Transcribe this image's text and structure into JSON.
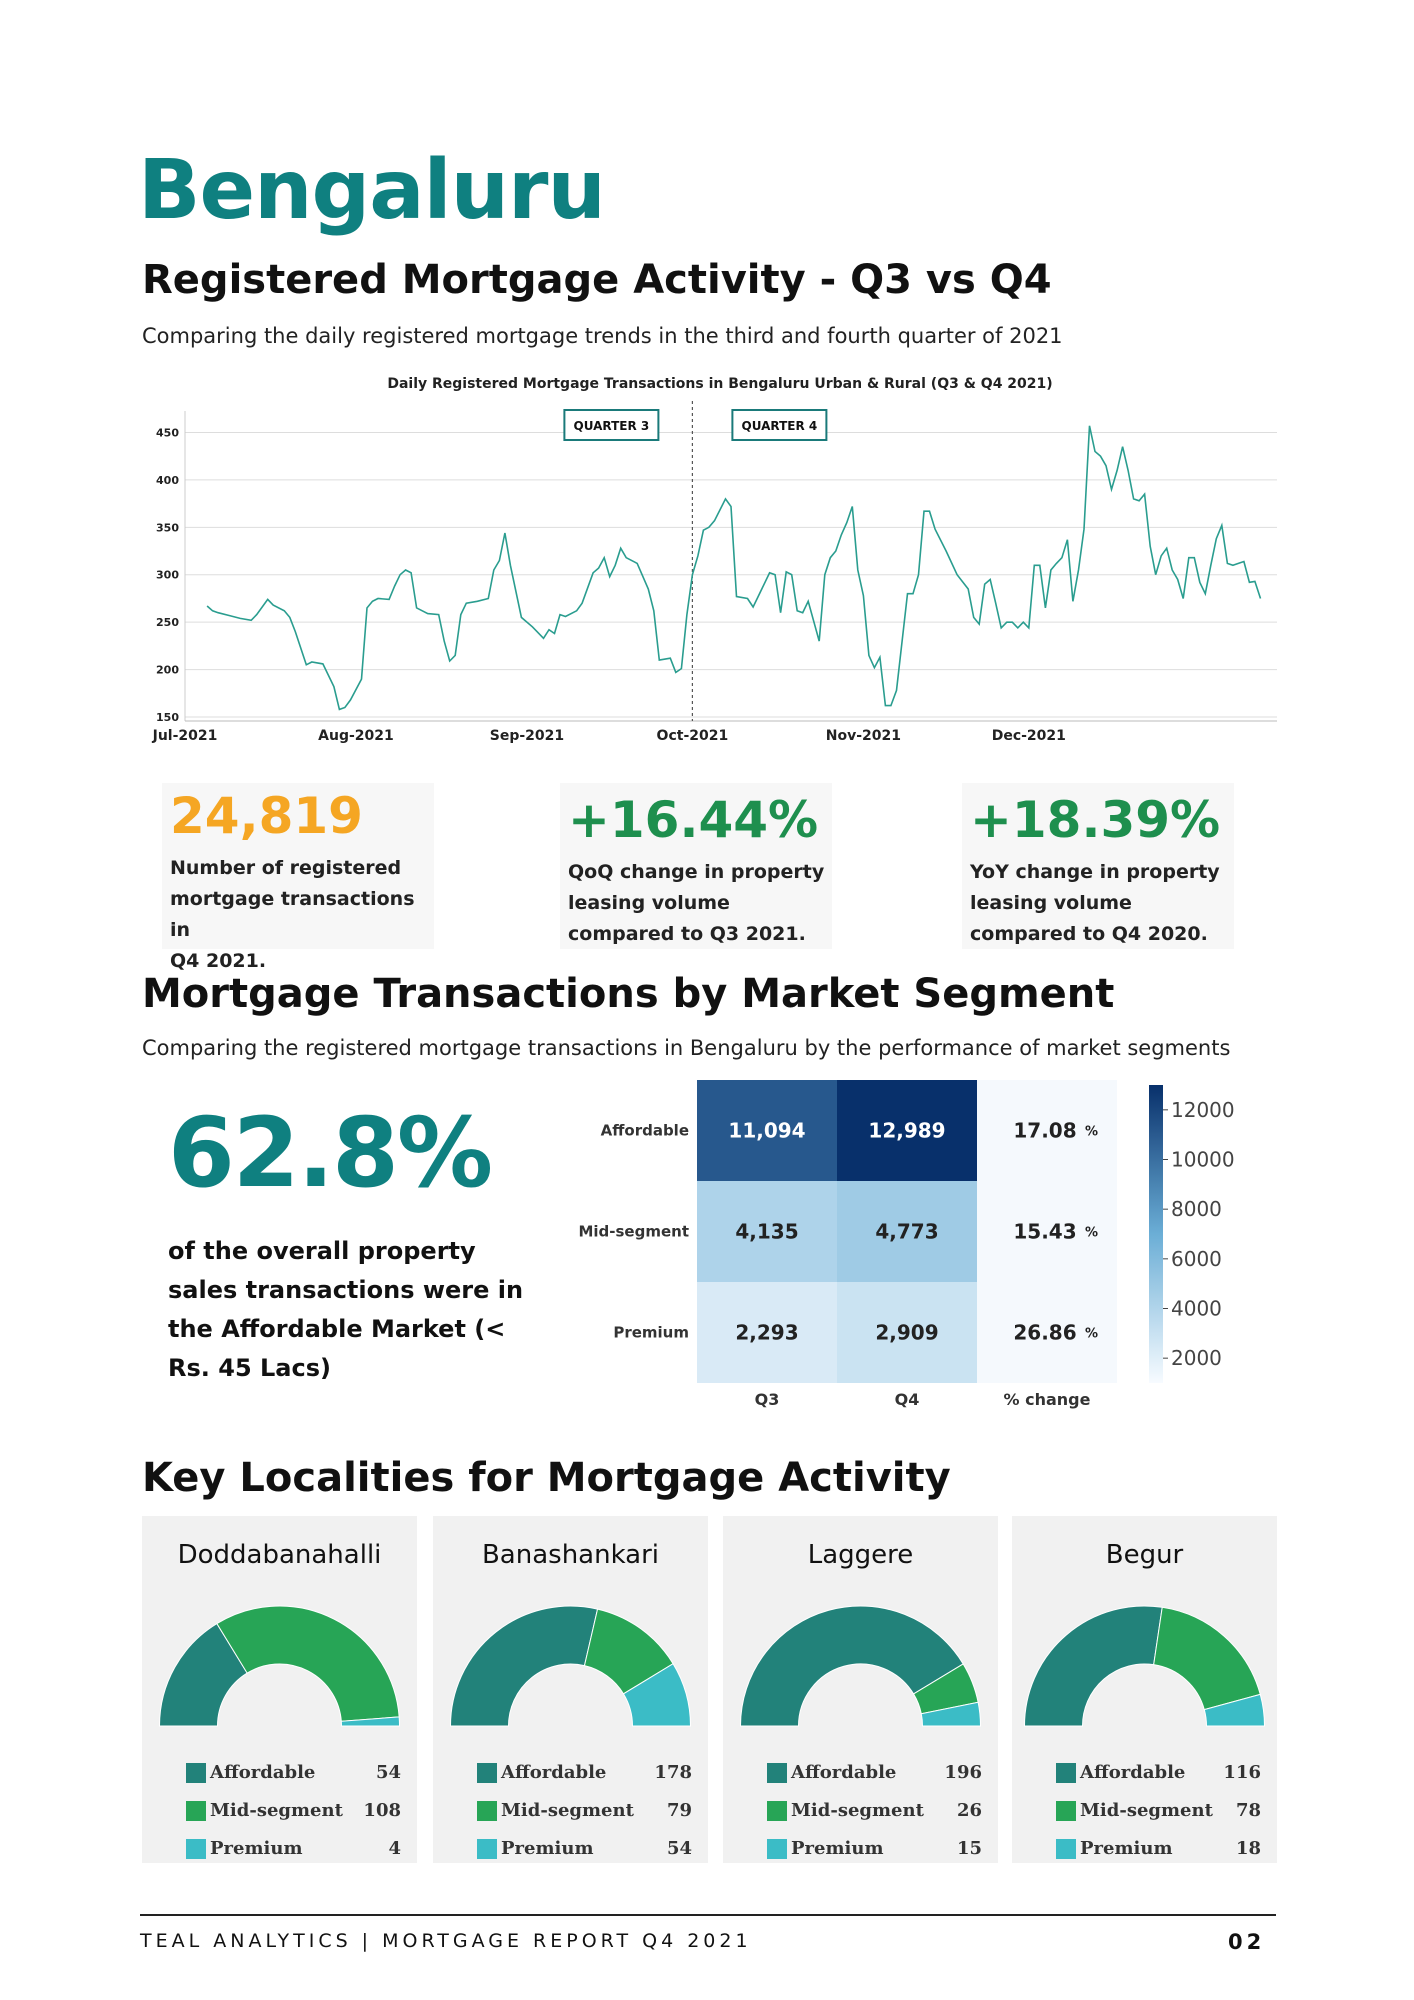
{
  "header": {
    "city": "Bengaluru",
    "section1_title": "Registered Mortgage Activity - Q3 vs Q4",
    "section1_subtitle": "Comparing the daily registered mortgage trends in the third and fourth quarter of 2021"
  },
  "colors": {
    "teal": "#0f8080",
    "orange": "#f5a623",
    "green": "#1e8f4e",
    "affordable": "#22827a",
    "mid_segment": "#27a556",
    "premium": "#3bbcc6"
  },
  "stats": [
    {
      "value": "24,819",
      "desc": [
        "Number of registered",
        "mortgage transactions in",
        "Q4 2021."
      ],
      "color": "#f5a623"
    },
    {
      "value": "+16.44%",
      "desc": [
        "QoQ change in property",
        "leasing volume",
        "compared to Q3 2021."
      ],
      "color": "#1e8f4e"
    },
    {
      "value": "+18.39%",
      "desc": [
        "YoY change in property",
        "leasing volume",
        "compared to Q4 2020."
      ],
      "color": "#1e8f4e"
    }
  ],
  "segment_section": {
    "title": "Mortgage Transactions by Market Segment",
    "subtitle": "Comparing the registered mortgage transactions in Bengaluru by the performance of market segments",
    "highlight_value": "62.8%",
    "highlight_desc": "of the overall property sales transactions were in the Affordable Market (< Rs. 45 Lacs)"
  },
  "localities_section": {
    "title": "Key Localities for Mortgage Activity",
    "legend_labels": [
      "Affordable",
      "Mid-segment",
      "Premium"
    ]
  },
  "footer": {
    "text": "TEAL ANALYTICS | MORTGAGE REPORT Q4 2021",
    "page": "02"
  },
  "chart_data": [
    {
      "type": "line",
      "title": "Daily Registered Mortgage Transactions in Bengaluru Urban & Rural (Q3 & Q4 2021)",
      "x_ticks": [
        "Jul-2021",
        "Aug-2021",
        "Sep-2021",
        "Oct-2021",
        "Nov-2021",
        "Dec-2021"
      ],
      "y_ticks": [
        150,
        200,
        250,
        300,
        350,
        400,
        450
      ],
      "ylim": [
        150,
        460
      ],
      "grid": "horizontal",
      "annotations": [
        "QUARTER 3",
        "QUARTER 4"
      ],
      "divider_date": "2021-10-01",
      "series": [
        {
          "color": "#2a9d8f",
          "points": [
            [
              "2021-07-05",
              267
            ],
            [
              "2021-07-06",
              262
            ],
            [
              "2021-07-07",
              260
            ],
            [
              "2021-07-09",
              257
            ],
            [
              "2021-07-11",
              254
            ],
            [
              "2021-07-13",
              252
            ],
            [
              "2021-07-14",
              258
            ],
            [
              "2021-07-16",
              274
            ],
            [
              "2021-07-17",
              268
            ],
            [
              "2021-07-19",
              262
            ],
            [
              "2021-07-20",
              255
            ],
            [
              "2021-07-21",
              240
            ],
            [
              "2021-07-23",
              205
            ],
            [
              "2021-07-24",
              208
            ],
            [
              "2021-07-26",
              206
            ],
            [
              "2021-07-28",
              182
            ],
            [
              "2021-07-29",
              158
            ],
            [
              "2021-07-30",
              160
            ],
            [
              "2021-07-31",
              168
            ],
            [
              "2021-08-02",
              190
            ],
            [
              "2021-08-03",
              265
            ],
            [
              "2021-08-04",
              272
            ],
            [
              "2021-08-05",
              275
            ],
            [
              "2021-08-07",
              274
            ],
            [
              "2021-08-08",
              288
            ],
            [
              "2021-08-09",
              300
            ],
            [
              "2021-08-10",
              305
            ],
            [
              "2021-08-11",
              302
            ],
            [
              "2021-08-12",
              265
            ],
            [
              "2021-08-14",
              259
            ],
            [
              "2021-08-16",
              258
            ],
            [
              "2021-08-17",
              230
            ],
            [
              "2021-08-18",
              209
            ],
            [
              "2021-08-19",
              215
            ],
            [
              "2021-08-20",
              258
            ],
            [
              "2021-08-21",
              270
            ],
            [
              "2021-08-23",
              272
            ],
            [
              "2021-08-25",
              275
            ],
            [
              "2021-08-26",
              305
            ],
            [
              "2021-08-27",
              315
            ],
            [
              "2021-08-28",
              344
            ],
            [
              "2021-08-29",
              310
            ],
            [
              "2021-08-31",
              255
            ],
            [
              "2021-09-02",
              245
            ],
            [
              "2021-09-04",
              233
            ],
            [
              "2021-09-05",
              242
            ],
            [
              "2021-09-06",
              238
            ],
            [
              "2021-09-07",
              258
            ],
            [
              "2021-09-08",
              256
            ],
            [
              "2021-09-10",
              262
            ],
            [
              "2021-09-11",
              270
            ],
            [
              "2021-09-13",
              302
            ],
            [
              "2021-09-14",
              307
            ],
            [
              "2021-09-15",
              318
            ],
            [
              "2021-09-16",
              298
            ],
            [
              "2021-09-17",
              310
            ],
            [
              "2021-09-18",
              328
            ],
            [
              "2021-09-19",
              318
            ],
            [
              "2021-09-21",
              312
            ],
            [
              "2021-09-23",
              285
            ],
            [
              "2021-09-24",
              262
            ],
            [
              "2021-09-25",
              210
            ],
            [
              "2021-09-27",
              212
            ],
            [
              "2021-09-28",
              197
            ],
            [
              "2021-09-29",
              201
            ],
            [
              "2021-09-30",
              258
            ],
            [
              "2021-10-01",
              300
            ],
            [
              "2021-10-02",
              320
            ],
            [
              "2021-10-03",
              347
            ],
            [
              "2021-10-04",
              350
            ],
            [
              "2021-10-05",
              357
            ],
            [
              "2021-10-07",
              380
            ],
            [
              "2021-10-08",
              372
            ],
            [
              "2021-10-09",
              277
            ],
            [
              "2021-10-11",
              275
            ],
            [
              "2021-10-12",
              266
            ],
            [
              "2021-10-13",
              278
            ],
            [
              "2021-10-15",
              302
            ],
            [
              "2021-10-16",
              300
            ],
            [
              "2021-10-17",
              260
            ],
            [
              "2021-10-18",
              303
            ],
            [
              "2021-10-19",
              300
            ],
            [
              "2021-10-20",
              262
            ],
            [
              "2021-10-21",
              260
            ],
            [
              "2021-10-22",
              272
            ],
            [
              "2021-10-24",
              230
            ],
            [
              "2021-10-25",
              300
            ],
            [
              "2021-10-26",
              318
            ],
            [
              "2021-10-27",
              325
            ],
            [
              "2021-10-28",
              342
            ],
            [
              "2021-10-29",
              355
            ],
            [
              "2021-10-30",
              372
            ],
            [
              "2021-10-31",
              305
            ],
            [
              "2021-11-01",
              278
            ],
            [
              "2021-11-02",
              215
            ],
            [
              "2021-11-03",
              202
            ],
            [
              "2021-11-04",
              213
            ],
            [
              "2021-11-05",
              162
            ],
            [
              "2021-11-06",
              162
            ],
            [
              "2021-11-07",
              178
            ],
            [
              "2021-11-09",
              280
            ],
            [
              "2021-11-10",
              280
            ],
            [
              "2021-11-11",
              300
            ],
            [
              "2021-11-12",
              367
            ],
            [
              "2021-11-13",
              367
            ],
            [
              "2021-11-14",
              348
            ],
            [
              "2021-11-16",
              325
            ],
            [
              "2021-11-18",
              300
            ],
            [
              "2021-11-20",
              285
            ],
            [
              "2021-11-21",
              255
            ],
            [
              "2021-11-22",
              248
            ],
            [
              "2021-11-23",
              290
            ],
            [
              "2021-11-24",
              295
            ],
            [
              "2021-11-25",
              270
            ],
            [
              "2021-11-26",
              244
            ],
            [
              "2021-11-27",
              250
            ],
            [
              "2021-11-28",
              250
            ],
            [
              "2021-11-29",
              244
            ],
            [
              "2021-11-30",
              250
            ],
            [
              "2021-12-01",
              244
            ],
            [
              "2021-12-02",
              310
            ],
            [
              "2021-12-03",
              310
            ],
            [
              "2021-12-04",
              265
            ],
            [
              "2021-12-05",
              305
            ],
            [
              "2021-12-06",
              312
            ],
            [
              "2021-12-07",
              318
            ],
            [
              "2021-12-08",
              337
            ],
            [
              "2021-12-09",
              272
            ],
            [
              "2021-12-10",
              305
            ],
            [
              "2021-12-11",
              348
            ],
            [
              "2021-12-12",
              457
            ],
            [
              "2021-12-13",
              430
            ],
            [
              "2021-12-14",
              425
            ],
            [
              "2021-12-15",
              415
            ],
            [
              "2021-12-16",
              390
            ],
            [
              "2021-12-17",
              410
            ],
            [
              "2021-12-18",
              435
            ],
            [
              "2021-12-19",
              410
            ],
            [
              "2021-12-20",
              380
            ],
            [
              "2021-12-21",
              378
            ],
            [
              "2021-12-22",
              385
            ],
            [
              "2021-12-23",
              330
            ],
            [
              "2021-12-24",
              300
            ],
            [
              "2021-12-25",
              320
            ],
            [
              "2021-12-26",
              328
            ],
            [
              "2021-12-27",
              305
            ],
            [
              "2021-12-28",
              295
            ],
            [
              "2021-12-29",
              275
            ],
            [
              "2021-12-30",
              318
            ],
            [
              "2021-12-31",
              318
            ],
            [
              "2022-01-01",
              292
            ],
            [
              "2022-01-02",
              280
            ],
            [
              "2022-01-03",
              310
            ],
            [
              "2022-01-04",
              338
            ],
            [
              "2022-01-05",
              352
            ],
            [
              "2022-01-06",
              312
            ],
            [
              "2022-01-07",
              310
            ],
            [
              "2022-01-08",
              312
            ],
            [
              "2022-01-09",
              314
            ],
            [
              "2022-01-10",
              292
            ],
            [
              "2022-01-11",
              293
            ],
            [
              "2022-01-12",
              275
            ]
          ]
        }
      ]
    },
    {
      "type": "heatmap",
      "rows": [
        "Affordable",
        "Mid-segment",
        "Premium"
      ],
      "columns": [
        "Q3",
        "Q4",
        "% change"
      ],
      "values": [
        [
          11094,
          12989
        ],
        [
          4135,
          4773
        ],
        [
          2293,
          2909
        ]
      ],
      "display_values": [
        [
          "11,094",
          "12,989"
        ],
        [
          "4,135",
          "4,773"
        ],
        [
          "2,293",
          "2,909"
        ]
      ],
      "pct_change": [
        "17.08",
        "15.43",
        "26.86"
      ],
      "pct_suffix": "%",
      "colorbar_ticks": [
        2000,
        4000,
        6000,
        8000,
        10000,
        12000
      ],
      "colorbar_range": [
        1000,
        13000
      ],
      "colormap": "Blues"
    },
    {
      "type": "pie",
      "subtype": "half-donut",
      "title": "Doddabanahalli",
      "categories": [
        "Affordable",
        "Mid-segment",
        "Premium"
      ],
      "values": [
        54,
        108,
        4
      ]
    },
    {
      "type": "pie",
      "subtype": "half-donut",
      "title": "Banashankari",
      "categories": [
        "Affordable",
        "Mid-segment",
        "Premium"
      ],
      "values": [
        178,
        79,
        54
      ]
    },
    {
      "type": "pie",
      "subtype": "half-donut",
      "title": "Laggere",
      "categories": [
        "Affordable",
        "Mid-segment",
        "Premium"
      ],
      "values": [
        196,
        26,
        15
      ]
    },
    {
      "type": "pie",
      "subtype": "half-donut",
      "title": "Begur",
      "categories": [
        "Affordable",
        "Mid-segment",
        "Premium"
      ],
      "values": [
        116,
        78,
        18
      ]
    }
  ]
}
